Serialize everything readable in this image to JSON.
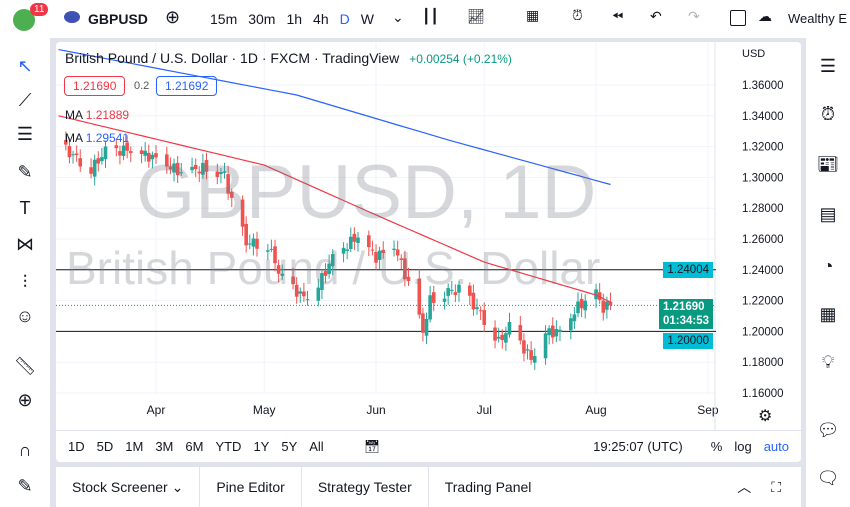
{
  "toolbar": {
    "notifications": "11",
    "symbol": "GBPUSD",
    "intervals": [
      "15m",
      "30m",
      "1h",
      "4h",
      "D",
      "W"
    ],
    "active_interval": "D",
    "account": "Wealthy E"
  },
  "legend": {
    "title": "British Pound / U.S. Dollar · 1D · FXCM · TradingView",
    "change": "+0.00254 (+0.21%)",
    "bid": "1.21690",
    "spread": "0.2",
    "ask": "1.21692",
    "ma1_label": "MA",
    "ma1_value": "1.21889",
    "ma2_label": "MA",
    "ma2_value": "1.29541"
  },
  "watermark": {
    "symbol": "GBPUSD, 1D",
    "name": "British Pound / U.S. Dollar"
  },
  "currency": "USD",
  "price_labels": {
    "level_high": "1.24004",
    "current": "1.21690",
    "countdown": "01:34:53",
    "level_low": "1.20000"
  },
  "ranges": [
    "1D",
    "5D",
    "1M",
    "3M",
    "6M",
    "YTD",
    "1Y",
    "5Y",
    "All"
  ],
  "clock": "19:25:07 (UTC)",
  "scale_opts": [
    "%",
    "log",
    "auto"
  ],
  "bottom_tabs": [
    "Stock Screener",
    "Pine Editor",
    "Strategy Tester",
    "Trading Panel"
  ],
  "colors": {
    "up": "#26a69a",
    "down": "#ef5350",
    "ma1": "#f23645",
    "ma2": "#2962ff",
    "level": "#00bcd4"
  },
  "chart_data": {
    "type": "candlestick",
    "y_ticks": [
      "1.36000",
      "1.34000",
      "1.32000",
      "1.30000",
      "1.28000",
      "1.26000",
      "1.24000",
      "1.22000",
      "1.20000",
      "1.18000",
      "1.16000"
    ],
    "ylim": [
      1.16,
      1.36
    ],
    "x_ticks": [
      {
        "label": "Apr",
        "date": "2022-04-01"
      },
      {
        "label": "May",
        "date": "2022-05-01"
      },
      {
        "label": "Jun",
        "date": "2022-06-01"
      },
      {
        "label": "Jul",
        "date": "2022-07-01"
      },
      {
        "label": "Aug",
        "date": "2022-08-01"
      },
      {
        "label": "Sep",
        "date": "2022-09-01"
      }
    ],
    "close_keyframes": [
      [
        "2022-03-07",
        1.318
      ],
      [
        "2022-03-14",
        1.305
      ],
      [
        "2022-03-18",
        1.317
      ],
      [
        "2022-03-25",
        1.318
      ],
      [
        "2022-04-01",
        1.312
      ],
      [
        "2022-04-08",
        1.303
      ],
      [
        "2022-04-14",
        1.306
      ],
      [
        "2022-04-20",
        1.302
      ],
      [
        "2022-04-22",
        1.284
      ],
      [
        "2022-04-26",
        1.258
      ],
      [
        "2022-05-02",
        1.256
      ],
      [
        "2022-05-06",
        1.234
      ],
      [
        "2022-05-12",
        1.222
      ],
      [
        "2022-05-16",
        1.23
      ],
      [
        "2022-05-20",
        1.248
      ],
      [
        "2022-05-27",
        1.262
      ],
      [
        "2022-06-01",
        1.248
      ],
      [
        "2022-06-06",
        1.256
      ],
      [
        "2022-06-10",
        1.231
      ],
      [
        "2022-06-14",
        1.2
      ],
      [
        "2022-06-16",
        1.22
      ],
      [
        "2022-06-21",
        1.226
      ],
      [
        "2022-06-24",
        1.227
      ],
      [
        "2022-06-29",
        1.215
      ],
      [
        "2022-07-05",
        1.193
      ],
      [
        "2022-07-08",
        1.203
      ],
      [
        "2022-07-14",
        1.182
      ],
      [
        "2022-07-18",
        1.199
      ],
      [
        "2022-07-22",
        1.2
      ],
      [
        "2022-07-27",
        1.216
      ],
      [
        "2022-08-01",
        1.225
      ],
      [
        "2022-08-03",
        1.215
      ],
      [
        "2022-08-05",
        1.2169
      ]
    ],
    "ma1": [
      [
        "2022-03-05",
        1.34
      ],
      [
        "2022-05-01",
        1.308
      ],
      [
        "2022-06-01",
        1.2756
      ],
      [
        "2022-07-01",
        1.245
      ],
      [
        "2022-08-01",
        1.2236
      ],
      [
        "2022-08-05",
        1.2189
      ]
    ],
    "ma2": [
      [
        "2022-03-05",
        1.383
      ],
      [
        "2022-05-10",
        1.3535
      ],
      [
        "2022-06-21",
        1.3243
      ],
      [
        "2022-08-05",
        1.2954
      ]
    ],
    "hlines": [
      1.24004,
      1.2
    ]
  }
}
